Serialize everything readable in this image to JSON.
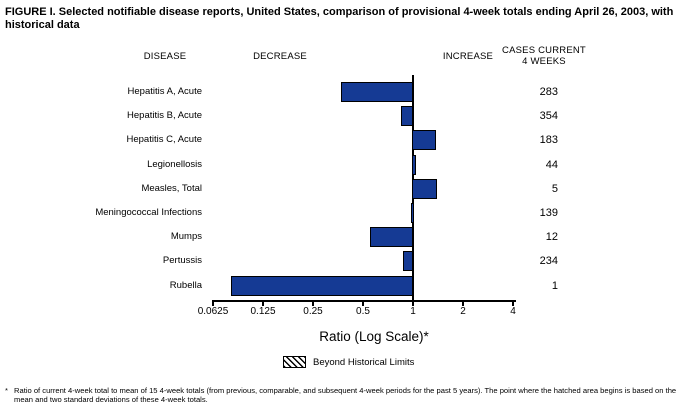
{
  "title": "FIGURE I. Selected notifiable disease reports, United States, comparison of provisional 4-week totals ending April 26, 2003, with historical data",
  "headers": {
    "disease": "DISEASE",
    "decrease": "DECREASE",
    "increase": "INCREASE",
    "cases_line1": "CASES CURRENT",
    "cases_line2": "4 WEEKS"
  },
  "chart_data": {
    "type": "bar",
    "orientation": "horizontal",
    "scale": "log2",
    "xlabel": "Ratio (Log Scale)*",
    "xlim": [
      0.0625,
      4
    ],
    "x_ticks": [
      0.0625,
      0.125,
      0.25,
      0.5,
      1,
      2,
      4
    ],
    "x_tick_labels": [
      "0.0625",
      "0.125",
      "0.25",
      "0.5",
      "1",
      "2",
      "4"
    ],
    "reference_line": 1,
    "grid": false,
    "bar_color": "#153a94",
    "categories": [
      "Hepatitis A, Acute",
      "Hepatitis B, Acute",
      "Hepatitis C, Acute",
      "Legionellosis",
      "Measles, Total",
      "Meningococcal Infections",
      "Mumps",
      "Pertussis",
      "Rubella"
    ],
    "series": [
      {
        "name": "Ratio of current 4-week total to historical mean",
        "values": [
          0.37,
          0.85,
          1.4,
          1.05,
          1.42,
          0.97,
          0.55,
          0.87,
          0.08
        ]
      }
    ],
    "cases_current_4_weeks": [
      283,
      354,
      183,
      44,
      5,
      139,
      12,
      234,
      1
    ]
  },
  "legend": {
    "label": "Beyond Historical Limits",
    "swatch": "diagonal-hatch"
  },
  "footnote": {
    "marker": "*",
    "text": "Ratio of current 4-week total to mean of 15 4-week totals (from previous, comparable, and subsequent 4-week periods for the past 5 years). The point where the hatched area begins is based on the mean and two standard deviations of these 4-week totals."
  }
}
